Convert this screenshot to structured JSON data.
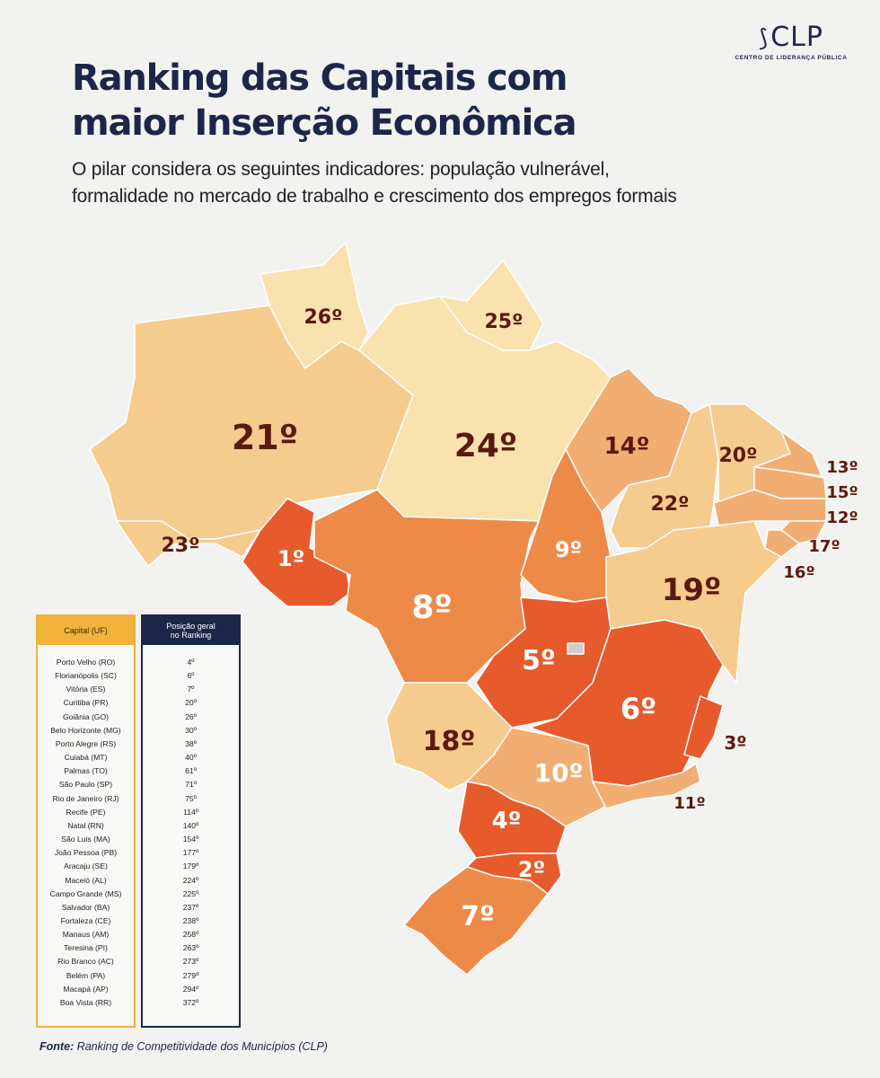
{
  "brand": {
    "logo_text": "CLP",
    "logo_subtitle": "CENTRO DE LIDERANÇA PÚBLICA"
  },
  "title": {
    "line1": "Ranking das Capitais com",
    "line2": "maior Inserção Econômica"
  },
  "subtitle": {
    "line1": "O pilar considera os seguintes indicadores: população vulnerável,",
    "line2": "formalidade no mercado de trabalho e crescimento dos empregos formais"
  },
  "colors": {
    "title": "#1c2649",
    "ranks_1_5": "#e65a2c",
    "ranks_6_10": "#ee8a48",
    "ranks_11_17": "#f2ad72",
    "ranks_18_23": "#f6cb8e",
    "ranks_24_26": "#f9e2ae",
    "label": "#5a1a10"
  },
  "map_labels": {
    "RR": "26º",
    "AP": "25º",
    "AM": "21º",
    "PA": "24º",
    "MA": "14º",
    "CE": "20º",
    "RN": "13º",
    "PB": "15º",
    "PE": "12º",
    "AL": "17º",
    "SE": "16º",
    "PI": "22º",
    "AC": "23º",
    "RO": "1º",
    "MT": "8º",
    "TO": "9º",
    "BA": "19º",
    "GO": "5º",
    "MG": "6º",
    "ES": "3º",
    "MS": "18º",
    "SP": "10º",
    "RJ": "11º",
    "PR": "4º",
    "SC": "2º",
    "RS": "7º"
  },
  "legend": {
    "capital_header": "Capital (UF)",
    "position_header_line1": "Posição geral",
    "position_header_line2": "no Ranking",
    "rows": [
      {
        "capital": "Porto Velho (RO)",
        "position": "4º"
      },
      {
        "capital": "Florianópolis (SC)",
        "position": "6º"
      },
      {
        "capital": "Vitória (ES)",
        "position": "7º"
      },
      {
        "capital": "Curitiba (PR)",
        "position": "20º"
      },
      {
        "capital": "Goiânia (GO)",
        "position": "26º"
      },
      {
        "capital": "Belo Horizonte (MG)",
        "position": "30º"
      },
      {
        "capital": "Porto Alegre (RS)",
        "position": "38º"
      },
      {
        "capital": "Cuiabá (MT)",
        "position": "40º"
      },
      {
        "capital": "Palmas (TO)",
        "position": "61º"
      },
      {
        "capital": "São Paulo (SP)",
        "position": "71º"
      },
      {
        "capital": "Rio de Janeiro (RJ)",
        "position": "75º"
      },
      {
        "capital": "Recife (PE)",
        "position": "114º"
      },
      {
        "capital": "Natal (RN)",
        "position": "140º"
      },
      {
        "capital": "São Luis (MA)",
        "position": "154º"
      },
      {
        "capital": "João Pessoa (PB)",
        "position": "177º"
      },
      {
        "capital": "Aracaju (SE)",
        "position": "179º"
      },
      {
        "capital": "Maceió (AL)",
        "position": "224º"
      },
      {
        "capital": "Campo Grande (MS)",
        "position": "225º"
      },
      {
        "capital": "Salvador (BA)",
        "position": "237º"
      },
      {
        "capital": "Fortaleza (CE)",
        "position": "238º"
      },
      {
        "capital": "Manaus (AM)",
        "position": "258º"
      },
      {
        "capital": "Teresina (PI)",
        "position": "263º"
      },
      {
        "capital": "Rio Branco (AC)",
        "position": "273º"
      },
      {
        "capital": "Belém (PA)",
        "position": "279º"
      },
      {
        "capital": "Macapá (AP)",
        "position": "294º"
      },
      {
        "capital": "Boa Vista (RR)",
        "position": "372º"
      }
    ]
  },
  "source": {
    "label": "Fonte:",
    "text": "Ranking de Competitividade dos  Municípios (CLP)"
  }
}
